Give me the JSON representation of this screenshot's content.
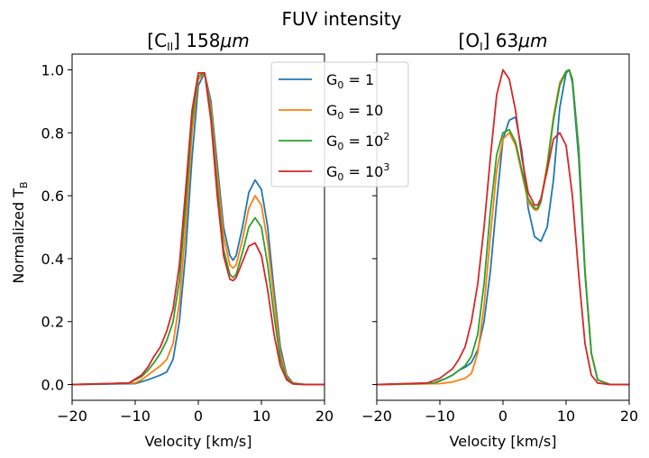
{
  "chart_data": {
    "type": "line",
    "suptitle": "FUV intensity",
    "ylabel_main": "Normalized T",
    "ylabel_sub": "B",
    "xlim": [
      -20,
      20
    ],
    "ylim": [
      -0.05,
      1.05
    ],
    "xticks": [
      -20,
      -10,
      0,
      10,
      20
    ],
    "yticks": [
      0.0,
      0.2,
      0.4,
      0.6,
      0.8,
      1.0
    ],
    "xtick_labels": [
      "−20",
      "−10",
      "0",
      "10",
      "20"
    ],
    "ytick_labels": [
      "0.0",
      "0.2",
      "0.4",
      "0.6",
      "0.8",
      "1.0"
    ],
    "legend": {
      "placement": "top-right of left panel",
      "entries": [
        {
          "base": "G",
          "sub": "0",
          "eq": " = ",
          "val": "1",
          "sup": "",
          "color": "#1f77b4"
        },
        {
          "base": "G",
          "sub": "0",
          "eq": " = ",
          "val": "10",
          "sup": "",
          "color": "#ff7f0e"
        },
        {
          "base": "G",
          "sub": "0",
          "eq": " = ",
          "val": "10",
          "sup": "2",
          "color": "#2ca02c"
        },
        {
          "base": "G",
          "sub": "0",
          "eq": " = ",
          "val": "10",
          "sup": "3",
          "color": "#d62728"
        }
      ]
    },
    "panels": [
      {
        "title_open": "[C",
        "title_sub": "II",
        "title_close": "] 158",
        "title_unit": "μm",
        "xlabel": "Velocity [km/s]",
        "series": [
          {
            "name": "G0 = 1",
            "color": "#1f77b4",
            "x": [
              -20,
              -10,
              -8,
              -6,
              -5,
              -4,
              -3,
              -2,
              -1,
              0,
              1,
              2,
              3,
              4,
              5,
              5.5,
              6,
              7,
              8,
              9,
              10,
              11,
              12,
              13,
              14,
              15,
              17,
              20
            ],
            "y": [
              0,
              0.003,
              0.015,
              0.03,
              0.04,
              0.08,
              0.2,
              0.42,
              0.72,
              0.95,
              0.99,
              0.9,
              0.7,
              0.5,
              0.41,
              0.395,
              0.41,
              0.5,
              0.61,
              0.65,
              0.62,
              0.5,
              0.3,
              0.12,
              0.03,
              0.005,
              0,
              0
            ]
          },
          {
            "name": "G0 = 10",
            "color": "#ff7f0e",
            "x": [
              -20,
              -10,
              -9,
              -8,
              -7,
              -6,
              -5,
              -4,
              -3,
              -2,
              -1,
              0,
              1,
              2,
              3,
              4,
              5,
              5.5,
              6,
              7,
              8,
              9,
              10,
              11,
              12,
              13,
              14,
              15,
              17,
              20
            ],
            "y": [
              0,
              0.005,
              0.015,
              0.03,
              0.045,
              0.06,
              0.08,
              0.13,
              0.26,
              0.5,
              0.8,
              0.97,
              0.99,
              0.88,
              0.67,
              0.47,
              0.38,
              0.37,
              0.38,
              0.46,
              0.56,
              0.6,
              0.57,
              0.45,
              0.27,
              0.1,
              0.025,
              0.004,
              0,
              0
            ]
          },
          {
            "name": "G0 = 10^2",
            "color": "#2ca02c",
            "x": [
              -20,
              -11,
              -9,
              -8,
              -7,
              -6,
              -5,
              -4,
              -3,
              -2,
              -1,
              0,
              1,
              2,
              3,
              4,
              5,
              5.5,
              6,
              7,
              8,
              9,
              10,
              11,
              12,
              13,
              14,
              15,
              17,
              20
            ],
            "y": [
              0,
              0.005,
              0.025,
              0.045,
              0.07,
              0.1,
              0.14,
              0.2,
              0.33,
              0.57,
              0.84,
              0.98,
              0.99,
              0.86,
              0.63,
              0.43,
              0.35,
              0.34,
              0.35,
              0.42,
              0.5,
              0.53,
              0.5,
              0.38,
              0.22,
              0.08,
              0.02,
              0.003,
              0,
              0
            ]
          },
          {
            "name": "G0 = 10^3",
            "color": "#d62728",
            "x": [
              -20,
              -11,
              -9,
              -8,
              -7,
              -6,
              -5,
              -4,
              -3,
              -2,
              -1,
              0,
              1,
              2,
              3,
              4,
              5,
              5.5,
              6,
              7,
              8,
              9,
              10,
              11,
              12,
              13,
              14,
              15,
              17,
              20
            ],
            "y": [
              0,
              0.005,
              0.03,
              0.055,
              0.09,
              0.12,
              0.17,
              0.24,
              0.38,
              0.62,
              0.87,
              0.99,
              0.99,
              0.84,
              0.6,
              0.41,
              0.335,
              0.33,
              0.34,
              0.39,
              0.44,
              0.45,
              0.41,
              0.3,
              0.16,
              0.06,
              0.015,
              0.002,
              0,
              0
            ]
          }
        ]
      },
      {
        "title_open": "[O",
        "title_sub": "I",
        "title_close": "] 63",
        "title_unit": "μm",
        "xlabel": "Velocity [km/s]",
        "series": [
          {
            "name": "G0 = 1",
            "color": "#1f77b4",
            "x": [
              -20,
              -11,
              -9,
              -8,
              -7,
              -6,
              -5,
              -4,
              -3,
              -2,
              -1,
              0,
              1,
              2,
              3,
              4,
              5,
              6,
              7,
              8,
              9,
              10,
              10.5,
              11,
              12,
              13,
              14,
              15,
              17,
              20
            ],
            "y": [
              0,
              0.003,
              0.02,
              0.03,
              0.045,
              0.055,
              0.07,
              0.11,
              0.2,
              0.36,
              0.58,
              0.78,
              0.84,
              0.85,
              0.74,
              0.56,
              0.47,
              0.455,
              0.5,
              0.65,
              0.88,
              0.99,
              1.0,
              0.96,
              0.72,
              0.35,
              0.1,
              0.015,
              0,
              0
            ]
          },
          {
            "name": "G0 = 10",
            "color": "#ff7f0e",
            "x": [
              -20,
              -10,
              -8,
              -6,
              -5,
              -4,
              -3,
              -2,
              -1,
              0,
              1,
              2,
              3,
              4,
              5,
              5.5,
              6,
              7,
              8,
              9,
              10,
              10.5,
              11,
              12,
              13,
              14,
              15,
              17,
              20
            ],
            "y": [
              0,
              0.003,
              0.008,
              0.02,
              0.035,
              0.1,
              0.25,
              0.47,
              0.68,
              0.78,
              0.8,
              0.76,
              0.67,
              0.58,
              0.555,
              0.555,
              0.58,
              0.7,
              0.85,
              0.96,
              0.995,
              1.0,
              0.97,
              0.75,
              0.36,
              0.1,
              0.015,
              0,
              0
            ]
          },
          {
            "name": "G0 = 10^2",
            "color": "#2ca02c",
            "x": [
              -20,
              -11,
              -9,
              -8,
              -7,
              -6,
              -5,
              -4,
              -3,
              -2,
              -1,
              0,
              1,
              2,
              3,
              4,
              5,
              5.5,
              6,
              7,
              8,
              9,
              10,
              10.5,
              11,
              12,
              13,
              14,
              15,
              17,
              20
            ],
            "y": [
              0,
              0.005,
              0.02,
              0.03,
              0.045,
              0.06,
              0.09,
              0.16,
              0.32,
              0.55,
              0.73,
              0.8,
              0.81,
              0.77,
              0.68,
              0.59,
              0.56,
              0.56,
              0.58,
              0.69,
              0.84,
              0.95,
              0.995,
              1.0,
              0.97,
              0.75,
              0.36,
              0.1,
              0.015,
              0,
              0
            ]
          },
          {
            "name": "G0 = 10^3",
            "color": "#d62728",
            "x": [
              -20,
              -12,
              -10,
              -8,
              -7,
              -6,
              -5,
              -4,
              -3,
              -2,
              -1,
              0,
              1,
              2,
              3,
              4,
              5,
              5.5,
              6,
              7,
              8,
              9,
              10,
              11,
              12,
              13,
              14,
              15,
              17,
              20
            ],
            "y": [
              0,
              0.005,
              0.02,
              0.05,
              0.08,
              0.12,
              0.2,
              0.32,
              0.5,
              0.72,
              0.92,
              1.0,
              0.97,
              0.87,
              0.72,
              0.61,
              0.57,
              0.57,
              0.59,
              0.68,
              0.78,
              0.8,
              0.76,
              0.6,
              0.35,
              0.13,
              0.03,
              0.005,
              0,
              0
            ]
          }
        ]
      }
    ]
  }
}
